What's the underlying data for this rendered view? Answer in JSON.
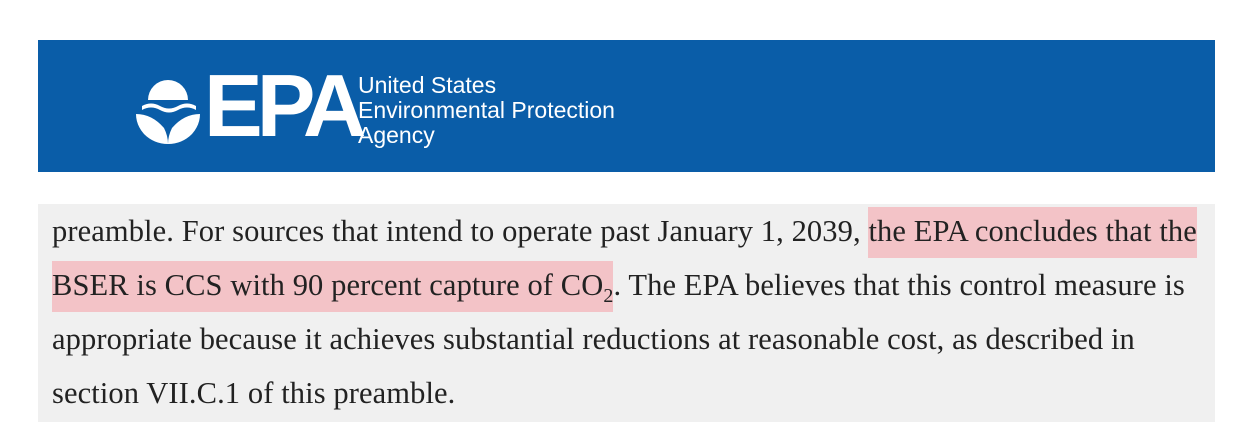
{
  "header": {
    "logo_text": "EPA",
    "agency_lines": [
      "United States",
      "Environmental Protection",
      "Agency"
    ],
    "background_color": "#0a5da8"
  },
  "excerpt": {
    "before_highlight": "preamble. For sources that intend to operate past January 1, 2039, ",
    "highlight_main": "the EPA concludes that the BSER is CCS with 90 percent capture of CO",
    "highlight_subscript": "2",
    "after_highlight": ". The EPA believes that this control measure is appropriate because it achieves substantial reductions at reasonable cost, as described in section VII.C.1 of this preamble.",
    "highlight_color": "#f3c3c7"
  }
}
